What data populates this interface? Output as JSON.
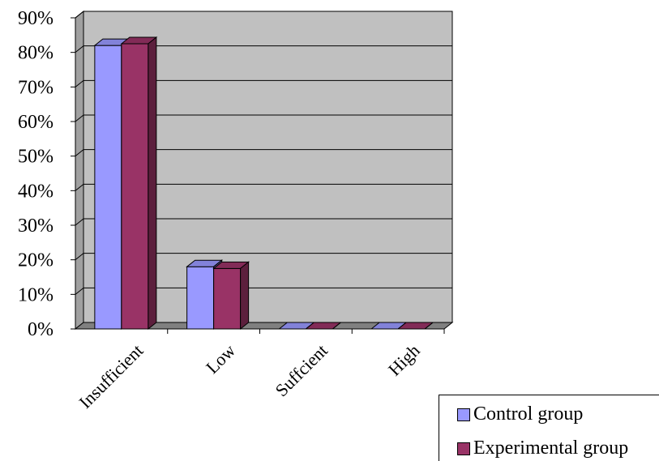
{
  "chart_data": {
    "type": "bar",
    "categories": [
      "Insufficient",
      "Low",
      "Suffcient",
      "High"
    ],
    "series": [
      {
        "name": "Control group",
        "values": [
          82,
          18,
          0,
          0
        ]
      },
      {
        "name": "Experimental group",
        "values": [
          82.5,
          17.5,
          0,
          0
        ]
      }
    ],
    "ylim": [
      0,
      90
    ],
    "yticks": [
      "0%",
      "10%",
      "20%",
      "30%",
      "40%",
      "50%",
      "60%",
      "70%",
      "80%",
      "90%"
    ],
    "grid": true,
    "legend_position": "bottom-right",
    "colors": {
      "control": "#9999FF",
      "experimental": "#993366",
      "wall": "#C0C0C0",
      "floor": "#808080"
    }
  }
}
